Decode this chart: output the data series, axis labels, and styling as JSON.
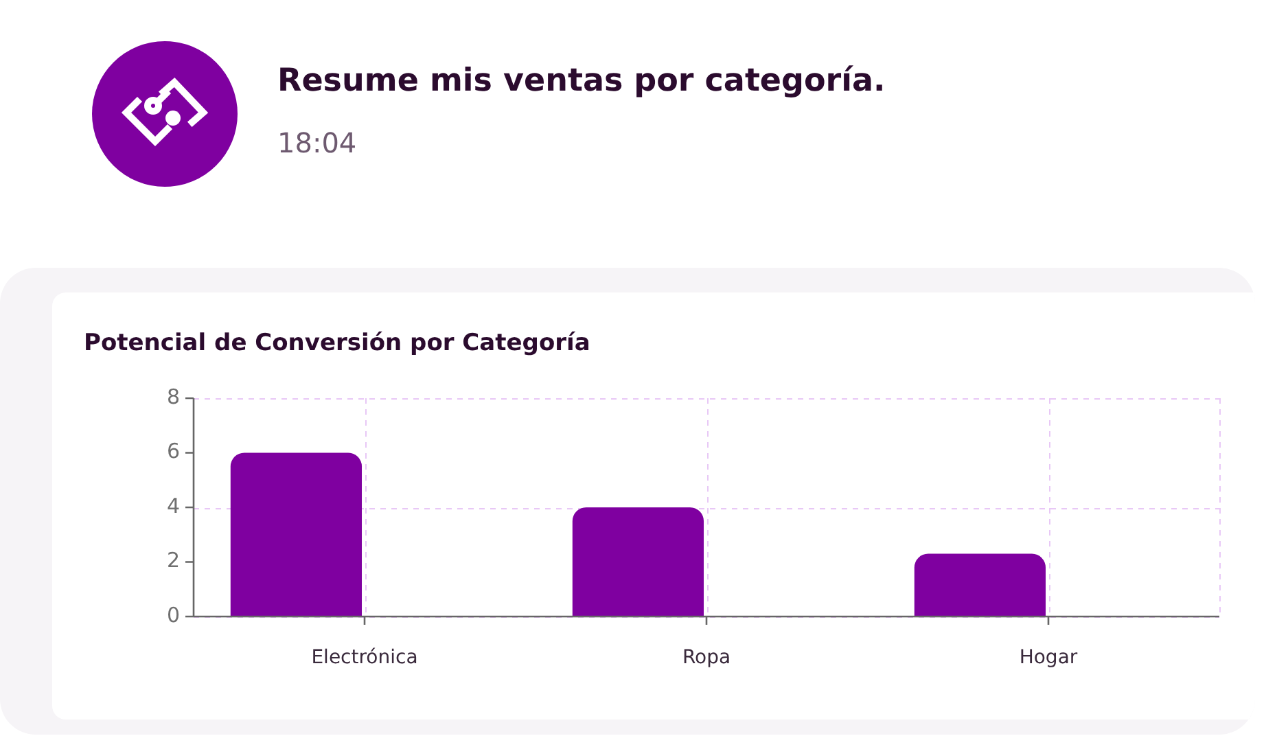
{
  "chart_data": {
    "type": "bar",
    "title": "Potencial de Conversión por Categoría",
    "annotations": [
      "Resume mis ventas por categoría.",
      "18:04"
    ],
    "categories": [
      "Electrónica",
      "Ropa",
      "Hogar"
    ],
    "values": [
      6,
      4,
      2.3
    ],
    "color": "#7f00a0",
    "ylim": [
      0,
      8
    ],
    "yticks": [
      0,
      2,
      4,
      6,
      8
    ],
    "grid": true
  }
}
